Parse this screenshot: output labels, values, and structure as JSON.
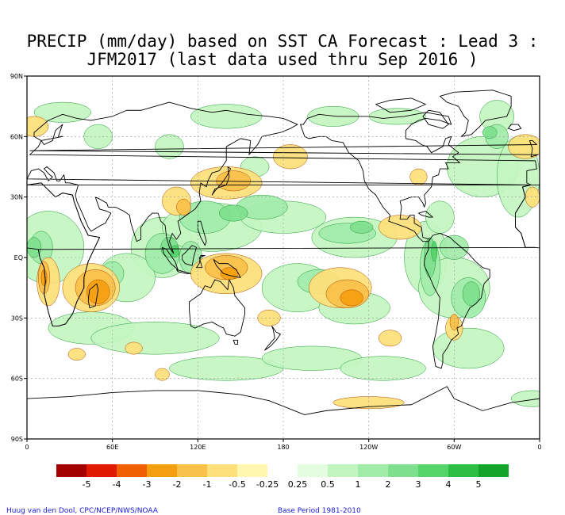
{
  "title": {
    "line1": "PRECIP (mm/day) based on SST CA Forecast : Lead 3 :",
    "line2": "JFM2017 (last data used thru Sep 2016 )"
  },
  "axes": {
    "lat_labels": [
      "90N",
      "60N",
      "30N",
      "EQ",
      "30S",
      "60S",
      "90S"
    ],
    "lon_labels": [
      "0",
      "60E",
      "120E",
      "180",
      "120W",
      "60W",
      "0"
    ]
  },
  "legend": {
    "colors": [
      "#a50000",
      "#e01a00",
      "#f06000",
      "#f59f10",
      "#f9c04a",
      "#fde07a",
      "#fff6b0",
      "#ffffff",
      "#e4fde0",
      "#c3f5c0",
      "#a2ecaa",
      "#7ee08e",
      "#55d46a",
      "#2dbf45",
      "#13a52b"
    ],
    "labels": [
      "-5",
      "-4",
      "-3",
      "-2",
      "-1",
      "-0.5",
      "-0.25",
      "0.25",
      "0.5",
      "1",
      "2",
      "3",
      "4",
      "5"
    ]
  },
  "colors": {
    "dry_light": "#fde07a",
    "dry_mid": "#f9c04a",
    "dry_strong": "#f59f10",
    "dry_extreme": "#f06000",
    "wet_light": "#c3f5c0",
    "wet_mid": "#a2ecaa",
    "wet_strong": "#7ee08e",
    "wet_extreme": "#55d46a",
    "coast": "#000000",
    "contour_wet": "#1f9a35",
    "contour_dry": "#b34a00"
  },
  "credits": {
    "left": "Huug van den Dool, CPC/NCEP/NWS/NOAA",
    "right": "Base Period 1981-2010"
  }
}
